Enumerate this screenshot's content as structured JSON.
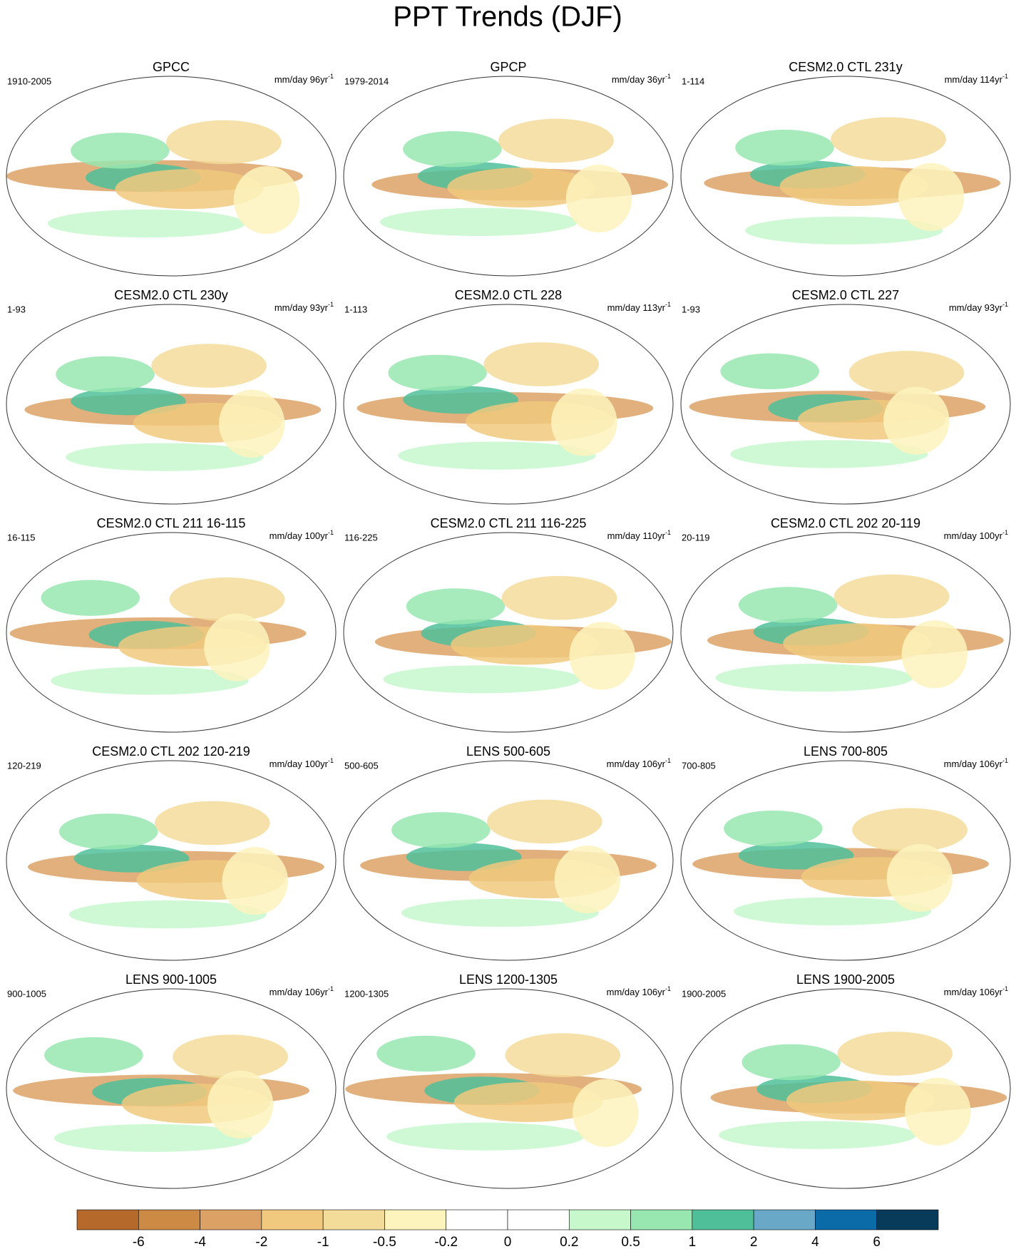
{
  "title": "PPT Trends (DJF)",
  "units_exponent": "-1",
  "panels": [
    {
      "title": "GPCC",
      "period": "1910-2005",
      "units": "mm/day 96yr"
    },
    {
      "title": "GPCP",
      "period": "1979-2014",
      "units": "mm/day 36yr"
    },
    {
      "title": "CESM2.0 CTL 231y",
      "period": "1-114",
      "units": "mm/day 114yr"
    },
    {
      "title": "CESM2.0 CTL 230y",
      "period": "1-93",
      "units": "mm/day 93yr"
    },
    {
      "title": "CESM2.0 CTL 228",
      "period": "1-113",
      "units": "mm/day 113yr"
    },
    {
      "title": "CESM2.0 CTL 227",
      "period": "1-93",
      "units": "mm/day 93yr"
    },
    {
      "title": "CESM2.0 CTL 211 16-115",
      "period": "16-115",
      "units": "mm/day 100yr"
    },
    {
      "title": "CESM2.0 CTL 211 116-225",
      "period": "116-225",
      "units": "mm/day 110yr"
    },
    {
      "title": "CESM2.0 CTL 202 20-119",
      "period": "20-119",
      "units": "mm/day 100yr"
    },
    {
      "title": "CESM2.0 CTL 202 120-219",
      "period": "120-219",
      "units": "mm/day 100yr"
    },
    {
      "title": "LENS 500-605",
      "period": "500-605",
      "units": "mm/day 106yr"
    },
    {
      "title": "LENS 700-805",
      "period": "700-805",
      "units": "mm/day 106yr"
    },
    {
      "title": "LENS 900-1005",
      "period": "900-1005",
      "units": "mm/day 106yr"
    },
    {
      "title": "LENS 1200-1305",
      "period": "1200-1305",
      "units": "mm/day 106yr"
    },
    {
      "title": "LENS 1900-2005",
      "period": "1900-2005",
      "units": "mm/day 106yr"
    }
  ],
  "colorbar": {
    "colors": [
      "#b5692a",
      "#cc8a45",
      "#dca265",
      "#f0c97e",
      "#f3dc9a",
      "#fdf3bd",
      "#ffffff",
      "#ffffff",
      "#c6f8cc",
      "#98e6b0",
      "#4fbf9a",
      "#6aa8c8",
      "#0b6aa8",
      "#083a5a"
    ],
    "labels": [
      -6,
      -4,
      -2,
      -1,
      -0.5,
      -0.2,
      0,
      0.2,
      0.5,
      1,
      2,
      4,
      6
    ]
  }
}
